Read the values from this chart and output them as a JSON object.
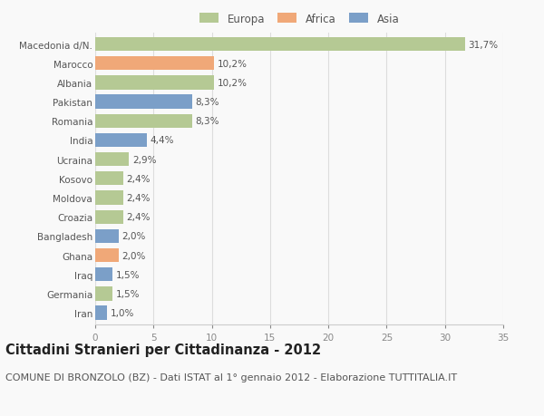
{
  "categories": [
    "Macedonia d/N.",
    "Marocco",
    "Albania",
    "Pakistan",
    "Romania",
    "India",
    "Ucraina",
    "Kosovo",
    "Moldova",
    "Croazia",
    "Bangladesh",
    "Ghana",
    "Iraq",
    "Germania",
    "Iran"
  ],
  "values": [
    31.7,
    10.2,
    10.2,
    8.3,
    8.3,
    4.4,
    2.9,
    2.4,
    2.4,
    2.4,
    2.0,
    2.0,
    1.5,
    1.5,
    1.0
  ],
  "labels": [
    "31,7%",
    "10,2%",
    "10,2%",
    "8,3%",
    "8,3%",
    "4,4%",
    "2,9%",
    "2,4%",
    "2,4%",
    "2,4%",
    "2,0%",
    "2,0%",
    "1,5%",
    "1,5%",
    "1,0%"
  ],
  "continents": [
    "Europa",
    "Africa",
    "Europa",
    "Asia",
    "Europa",
    "Asia",
    "Europa",
    "Europa",
    "Europa",
    "Europa",
    "Asia",
    "Africa",
    "Asia",
    "Europa",
    "Asia"
  ],
  "colors": {
    "Europa": "#b5c994",
    "Africa": "#f0a878",
    "Asia": "#7b9fc8"
  },
  "xlim": [
    0,
    35
  ],
  "xticks": [
    0,
    5,
    10,
    15,
    20,
    25,
    30,
    35
  ],
  "title": "Cittadini Stranieri per Cittadinanza - 2012",
  "subtitle": "COMUNE DI BRONZOLO (BZ) - Dati ISTAT al 1° gennaio 2012 - Elaborazione TUTTITALIA.IT",
  "background_color": "#f9f9f9",
  "title_fontsize": 10.5,
  "subtitle_fontsize": 8,
  "label_fontsize": 7.5,
  "tick_fontsize": 7.5,
  "legend_fontsize": 8.5,
  "bar_height": 0.72,
  "grid_color": "#dddddd"
}
